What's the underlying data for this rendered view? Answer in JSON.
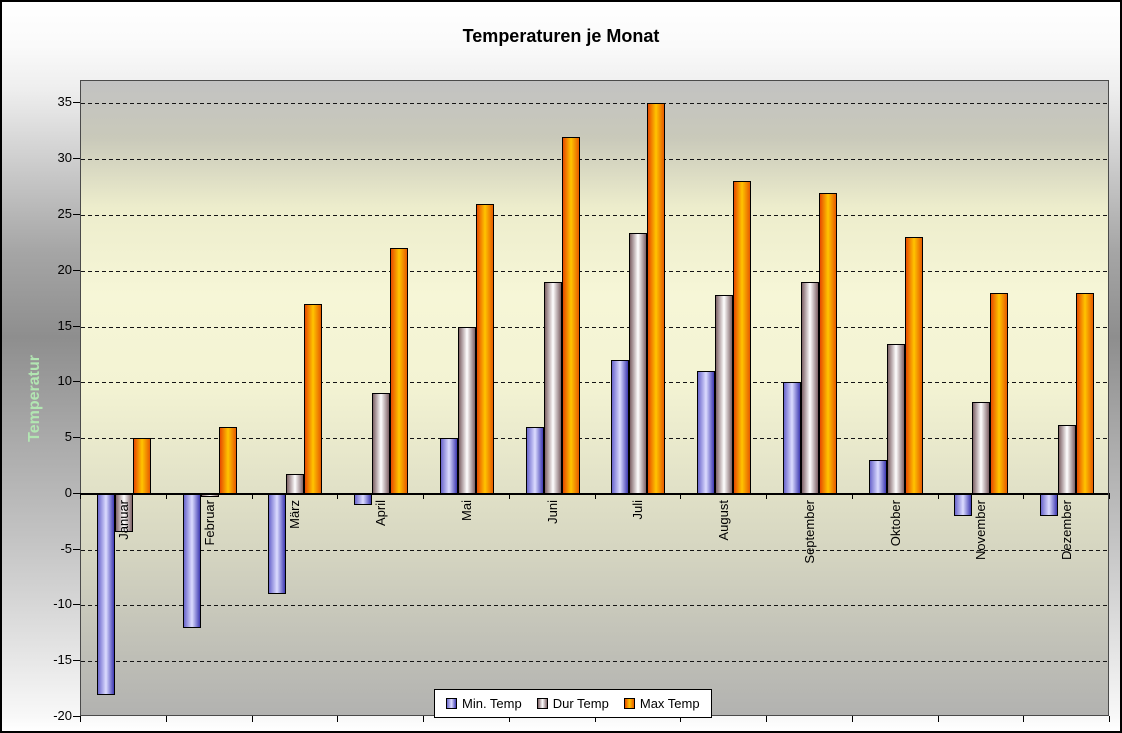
{
  "title": "Temperaturen je Monat",
  "y_axis": {
    "title": "Temperatur",
    "title_color": "#b2e6b2",
    "ticks": [
      -20,
      -15,
      -10,
      -5,
      0,
      5,
      10,
      15,
      20,
      25,
      30,
      35
    ]
  },
  "chart_data": {
    "type": "bar",
    "title": "Temperaturen je Monat",
    "xlabel": "",
    "ylabel": "Temperatur",
    "ylim": [
      -20,
      37
    ],
    "y_tick_step": 5,
    "grid": "dashed horizontal",
    "legend_position": "bottom",
    "categories": [
      "Januar",
      "Februar",
      "März",
      "April",
      "Mai",
      "Juni",
      "Juli",
      "August",
      "September",
      "Oktober",
      "November",
      "Dezember"
    ],
    "series": [
      {
        "name": "Min. Temp",
        "values": [
          -18,
          -12,
          -9,
          -1,
          5,
          6,
          12,
          11,
          10,
          3,
          -2,
          -2
        ],
        "gradient": [
          "#6a66cc",
          "#dcdcff",
          "#3e3ab2"
        ]
      },
      {
        "name": "Dur Temp",
        "values": [
          -3.4,
          -0.3,
          1.8,
          9,
          15,
          19,
          23.4,
          17.8,
          19,
          13.4,
          8.2,
          6.2
        ],
        "gradient": [
          "#7e6266",
          "#ffffff",
          "#7e6266"
        ]
      },
      {
        "name": "Max Temp",
        "values": [
          5,
          6,
          17,
          22,
          26,
          32,
          35,
          28,
          27,
          23,
          18,
          18
        ],
        "gradient": [
          "#e64a00",
          "#ffc400",
          "#e65c00"
        ]
      }
    ]
  }
}
